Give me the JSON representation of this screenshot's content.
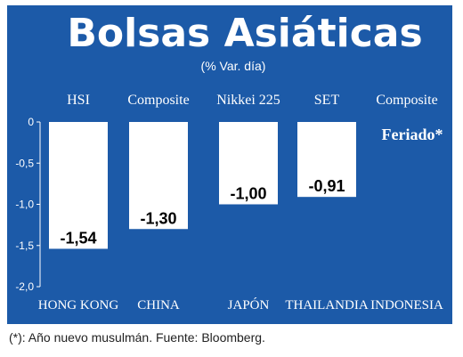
{
  "chart_data": {
    "type": "bar",
    "title": "Bolsas Asiáticas",
    "subtitle": "(% Var. día)",
    "index_labels": [
      "HSI",
      "Composite",
      "Nikkei 225",
      "SET",
      "Composite"
    ],
    "categories": [
      "HONG KONG",
      "CHINA",
      "JAPÓN",
      "THAILANDIA",
      "INDONESIA"
    ],
    "values": [
      -1.54,
      -1.3,
      -1.0,
      -0.91,
      null
    ],
    "value_labels": [
      "-1,54",
      "-1,30",
      "-1,00",
      "-0,91",
      ""
    ],
    "annotation": "Feriado*",
    "ylim": [
      -2.0,
      0
    ],
    "y_ticks": [
      0,
      -0.5,
      -1.0,
      -1.5,
      -2.0
    ],
    "y_tick_labels": [
      "0",
      "-0,5",
      "-1,0",
      "-1,5",
      "-2,0"
    ],
    "grid": false,
    "colors": {
      "background": "#1c5aa8",
      "bar": "#ffffff",
      "text": "#ffffff",
      "label_text": "#000000"
    }
  },
  "footnote": "(*): Año nuevo musulmán. Fuente: Bloomberg."
}
